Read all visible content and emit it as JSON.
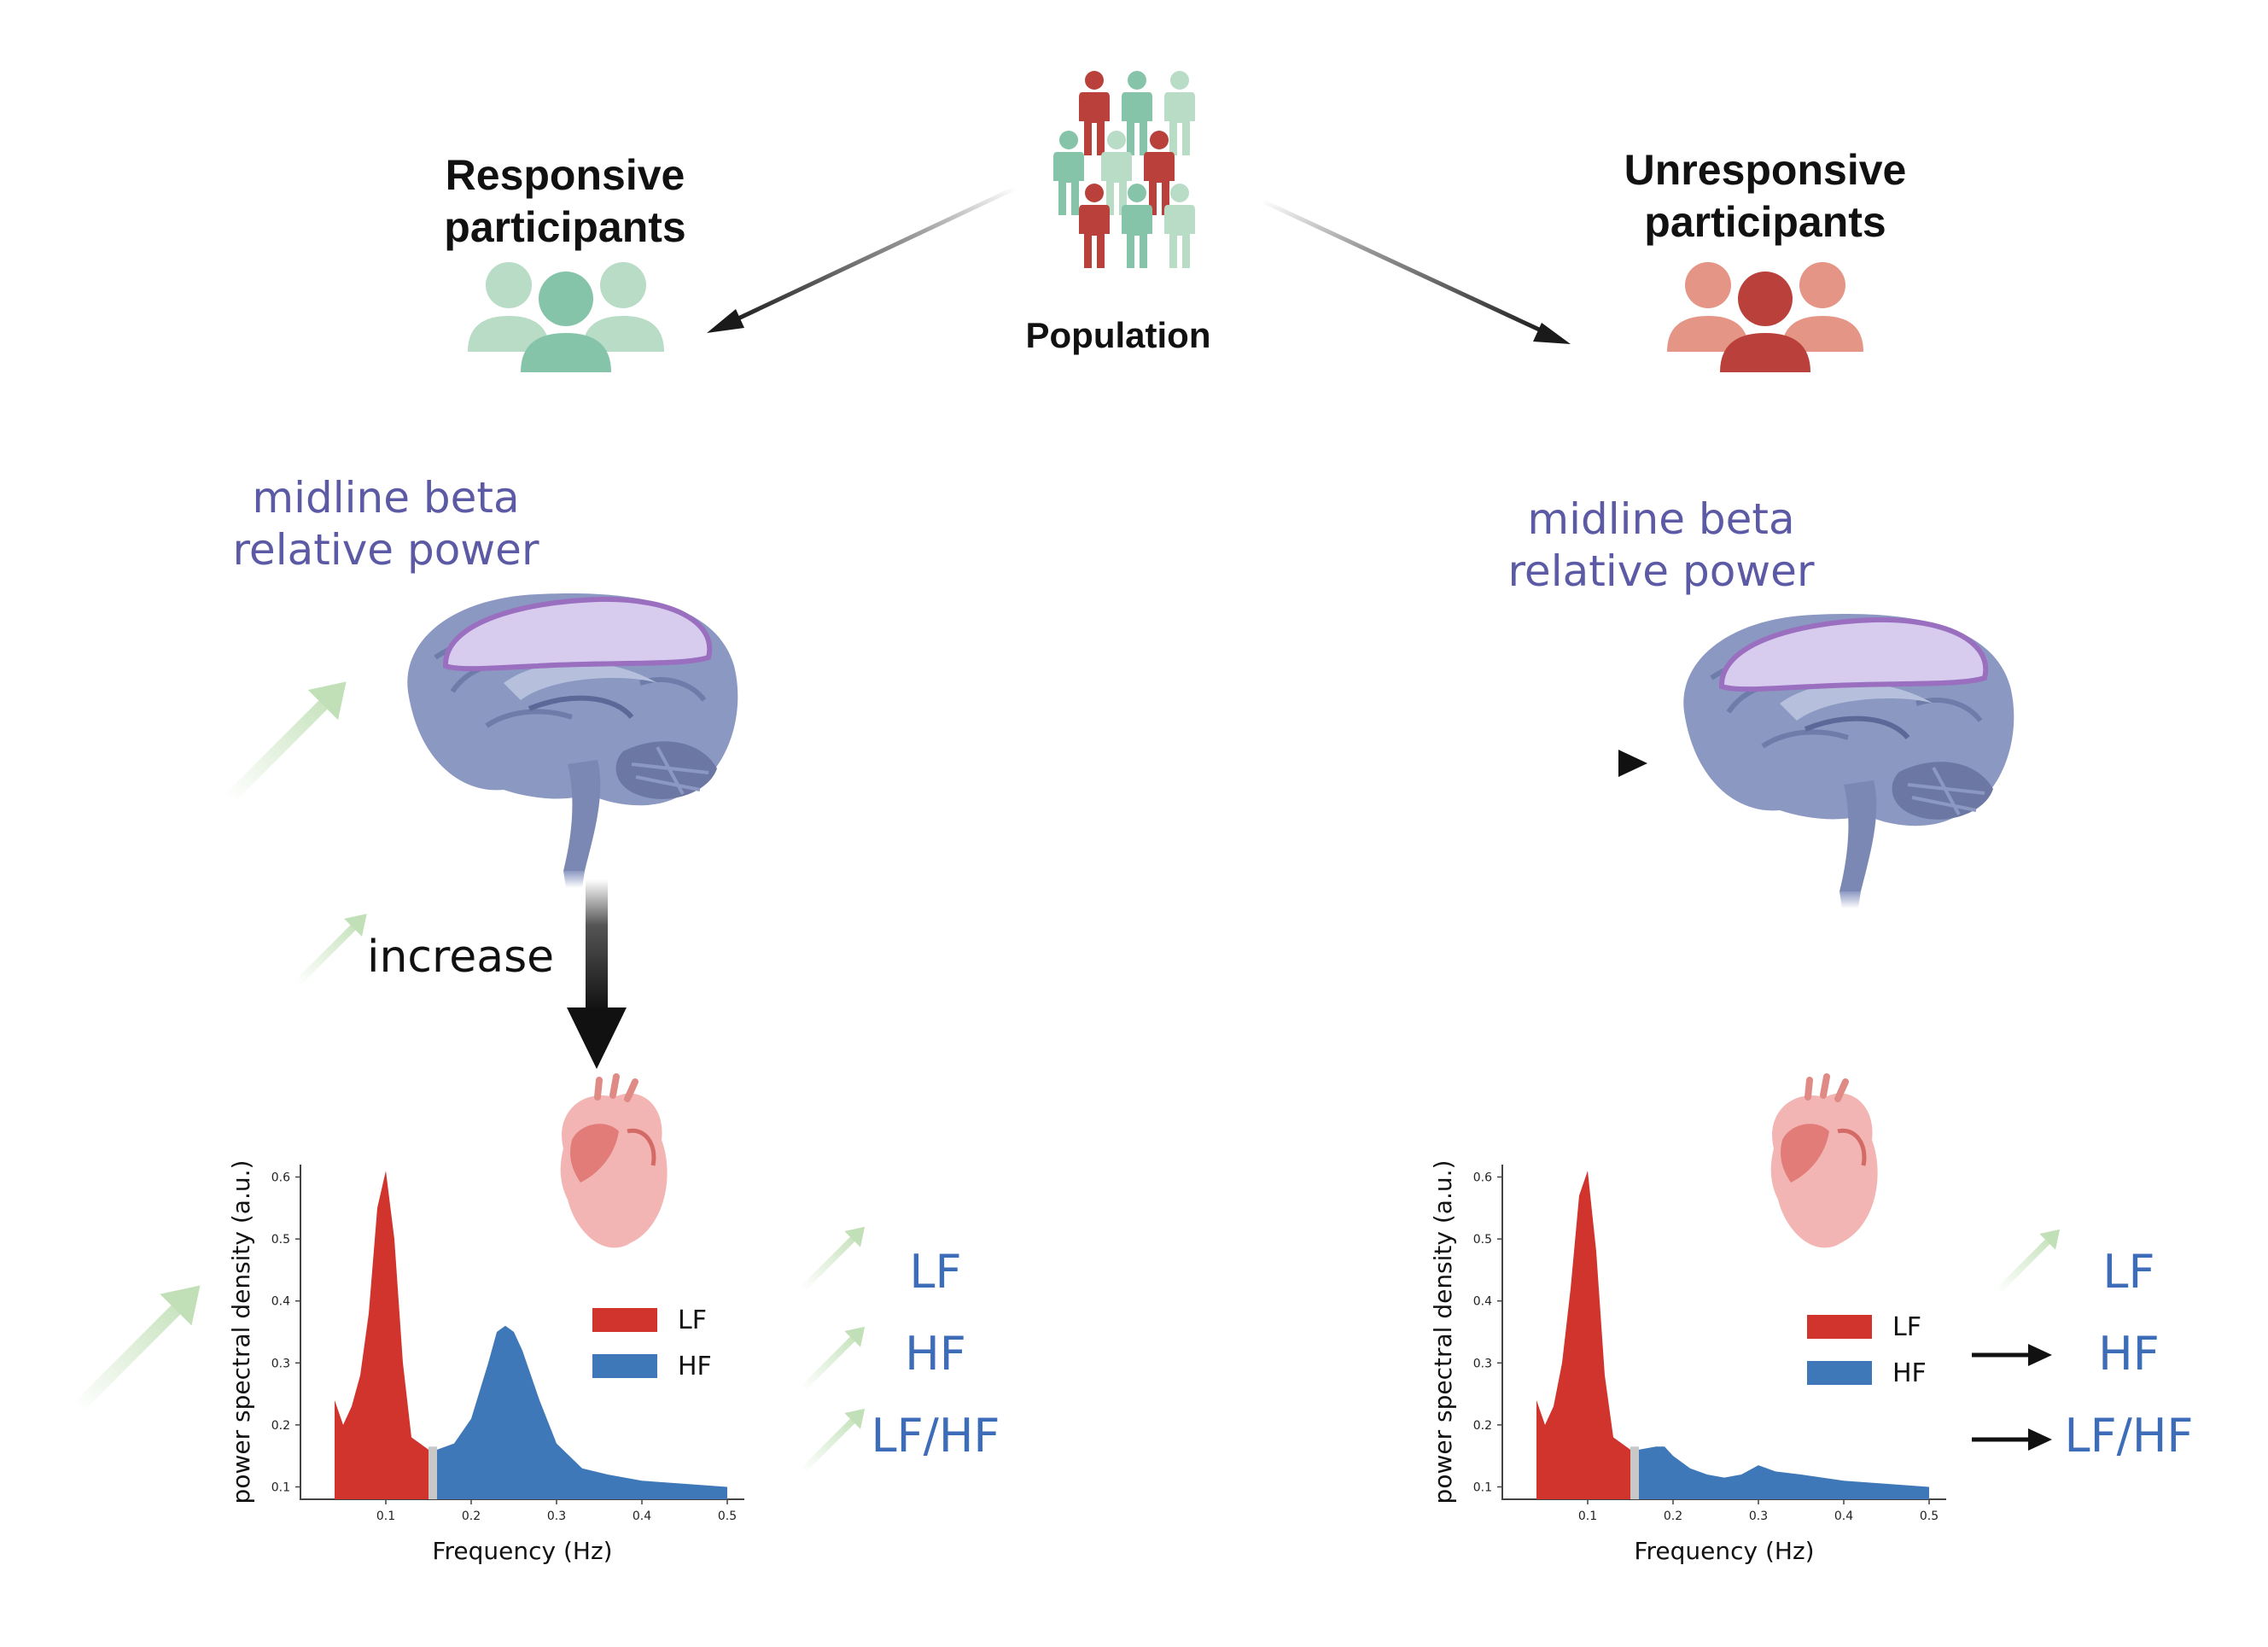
{
  "labels": {
    "population": "Population",
    "responsive_line1": "Responsive",
    "responsive_line2": "participants",
    "unresponsive_line1": "Unresponsive",
    "unresponsive_line2": "participants",
    "beta_line1": "midline beta",
    "beta_line2": "relative power",
    "increase": "increase"
  },
  "hrv_labels": [
    "LF",
    "HF",
    "LF/HF"
  ],
  "responsive_trends": [
    "increase",
    "increase",
    "increase"
  ],
  "unresponsive_trends": [
    "increase",
    "unchanged",
    "unchanged"
  ],
  "icons": [
    "people-crowd-icon",
    "group-icon",
    "brain-icon",
    "heart-icon",
    "trend-up-arrow-icon",
    "arrow-right-icon",
    "arrow-down-icon"
  ],
  "colors": {
    "responsive": "#86c4aa",
    "responsive_light": "#b8dcc6",
    "unresponsive": "#b9403b",
    "unresponsive_light": "#e59585",
    "lf": "#d0342c",
    "hf": "#3f78b8",
    "band_gap": "#c8c8c8",
    "trend_arrow": "#c7e3bd",
    "beta_text": "#5c5aa5",
    "hrv_text": "#3d6cb8"
  },
  "chart_data": [
    {
      "type": "area",
      "panel": "responsive",
      "xlabel": "Frequency (Hz)",
      "ylabel": "power spectral density (a.u.)",
      "xticks": [
        "0.1",
        "0.2",
        "0.3",
        "0.4",
        "0.5"
      ],
      "yticks": [
        "0.1",
        "0.2",
        "0.3",
        "0.4",
        "0.5",
        "0.6"
      ],
      "xlim": [
        0.04,
        0.5
      ],
      "ylim": [
        0.1,
        0.6
      ],
      "legend": [
        "LF",
        "HF"
      ],
      "legend_position": "center-right",
      "series": [
        {
          "name": "LF",
          "x": [
            0.04,
            0.05,
            0.06,
            0.07,
            0.08,
            0.09,
            0.1,
            0.11,
            0.12,
            0.13,
            0.15
          ],
          "y": [
            0.24,
            0.2,
            0.23,
            0.28,
            0.38,
            0.55,
            0.61,
            0.5,
            0.3,
            0.18,
            0.16
          ]
        },
        {
          "name": "HF",
          "x": [
            0.16,
            0.18,
            0.2,
            0.22,
            0.23,
            0.24,
            0.25,
            0.26,
            0.28,
            0.3,
            0.33,
            0.36,
            0.4,
            0.45,
            0.5
          ],
          "y": [
            0.16,
            0.17,
            0.21,
            0.3,
            0.35,
            0.36,
            0.35,
            0.32,
            0.24,
            0.17,
            0.13,
            0.12,
            0.11,
            0.105,
            0.1
          ]
        }
      ]
    },
    {
      "type": "area",
      "panel": "unresponsive",
      "xlabel": "Frequency (Hz)",
      "ylabel": "power spectral density (a.u.)",
      "xticks": [
        "0.1",
        "0.2",
        "0.3",
        "0.4",
        "0.5"
      ],
      "yticks": [
        "0.1",
        "0.2",
        "0.3",
        "0.4",
        "0.5",
        "0.6"
      ],
      "xlim": [
        0.04,
        0.5
      ],
      "ylim": [
        0.1,
        0.6
      ],
      "legend": [
        "LF",
        "HF"
      ],
      "legend_position": "center-right",
      "series": [
        {
          "name": "LF",
          "x": [
            0.04,
            0.05,
            0.06,
            0.07,
            0.08,
            0.09,
            0.1,
            0.11,
            0.12,
            0.13,
            0.15
          ],
          "y": [
            0.24,
            0.2,
            0.23,
            0.3,
            0.42,
            0.57,
            0.61,
            0.48,
            0.28,
            0.18,
            0.16
          ]
        },
        {
          "name": "HF",
          "x": [
            0.16,
            0.18,
            0.19,
            0.2,
            0.22,
            0.24,
            0.26,
            0.28,
            0.3,
            0.32,
            0.35,
            0.4,
            0.45,
            0.5
          ],
          "y": [
            0.16,
            0.165,
            0.165,
            0.15,
            0.13,
            0.12,
            0.115,
            0.12,
            0.135,
            0.125,
            0.12,
            0.11,
            0.105,
            0.1
          ]
        }
      ]
    }
  ]
}
